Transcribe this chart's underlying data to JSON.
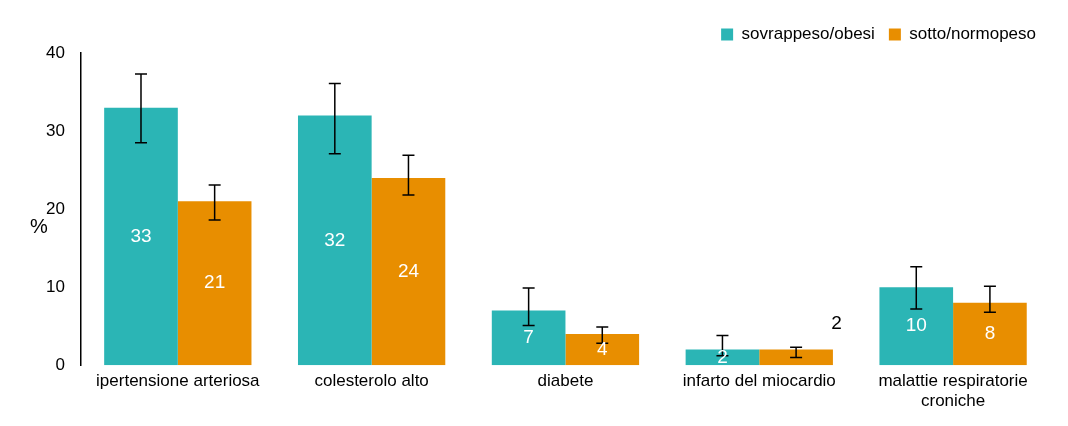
{
  "chart_data": {
    "type": "bar",
    "ylabel": "%",
    "categories": [
      "ipertensione arteriosa",
      "colesterolo alto",
      "diabete",
      "infarto del miocardio",
      "malattie respiratorie croniche"
    ],
    "series": [
      {
        "name": "sovrappeso/obesi",
        "color": "#2bb5b5",
        "values": [
          33,
          32,
          7,
          2,
          10
        ],
        "errors": [
          [
            28.5,
            37.3
          ],
          [
            27.1,
            36.1
          ],
          [
            5.1,
            9.9
          ],
          [
            1.2,
            3.8
          ],
          [
            7.2,
            12.6
          ]
        ]
      },
      {
        "name": "sotto/normopeso",
        "color": "#e88e00",
        "values": [
          21,
          24,
          4,
          2,
          8
        ],
        "errors": [
          [
            18.6,
            23.1
          ],
          [
            21.8,
            26.9
          ],
          [
            2.8,
            4.9
          ],
          [
            1.0,
            2.3
          ],
          [
            6.8,
            10.1
          ]
        ]
      }
    ],
    "ylim": [
      0,
      40
    ],
    "yticks": [
      0,
      10,
      20,
      30,
      40
    ],
    "grid": false,
    "legend": "top right",
    "data_labels": true
  }
}
